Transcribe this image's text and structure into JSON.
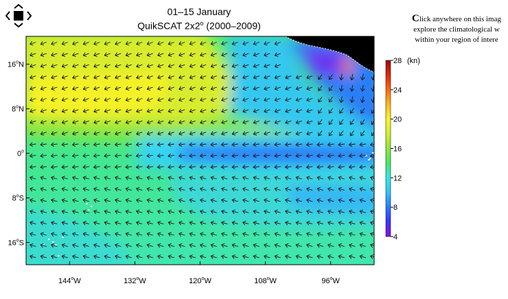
{
  "header": {
    "title": "01–15 January",
    "subtitle_prefix": "QuikSCAT 2x2",
    "subtitle_degree": "o",
    "subtitle_suffix": " (2000–2009)"
  },
  "info": {
    "lead_letter": "C",
    "line1_rest": "lick anywhere on this imag",
    "line2": "explore the climatological w",
    "line3": "within your region of intere"
  },
  "navigation": {
    "icons": [
      "arrow-up-icon",
      "arrow-down-icon",
      "arrow-left-icon",
      "arrow-right-icon",
      "center-square-icon"
    ]
  },
  "colorbar": {
    "unit": "(kn)",
    "ticks": [
      "28",
      "24",
      "20",
      "16",
      "12",
      "8",
      "4"
    ],
    "stops": [
      {
        "value": 4,
        "color": "#8a10e0"
      },
      {
        "value": 6,
        "color": "#3a30ff"
      },
      {
        "value": 8,
        "color": "#2a7af6"
      },
      {
        "value": 10,
        "color": "#34c0ff"
      },
      {
        "value": 12,
        "color": "#30e8e0"
      },
      {
        "value": 14,
        "color": "#46e86a"
      },
      {
        "value": 16,
        "color": "#90e63a"
      },
      {
        "value": 18,
        "color": "#d2ee2a"
      },
      {
        "value": 20,
        "color": "#fff426"
      },
      {
        "value": 22,
        "color": "#ffb81c"
      },
      {
        "value": 24,
        "color": "#ff6a10"
      },
      {
        "value": 26,
        "color": "#e02808"
      },
      {
        "value": 28,
        "color": "#a00808"
      }
    ]
  },
  "map": {
    "lon_range": [
      -152,
      -88
    ],
    "lat_range": [
      -20,
      21
    ],
    "lat_ticks": [
      {
        "value": 16,
        "label": "16",
        "deg": "o",
        "hemi": "N"
      },
      {
        "value": 8,
        "label": "8",
        "deg": "o",
        "hemi": "N"
      },
      {
        "value": 0,
        "label": "0",
        "deg": "o",
        "hemi": ""
      },
      {
        "value": -8,
        "label": "8",
        "deg": "o",
        "hemi": "S"
      },
      {
        "value": -16,
        "label": "16",
        "deg": "o",
        "hemi": "S"
      }
    ],
    "lon_ticks": [
      {
        "value": -144,
        "label": "144",
        "deg": "o",
        "hemi": "W"
      },
      {
        "value": -132,
        "label": "132",
        "deg": "o",
        "hemi": "W"
      },
      {
        "value": -120,
        "label": "120",
        "deg": "o",
        "hemi": "W"
      },
      {
        "value": -108,
        "label": "108",
        "deg": "o",
        "hemi": "W"
      },
      {
        "value": -96,
        "label": "96",
        "deg": "o",
        "hemi": "W"
      }
    ],
    "land_color": "#000000"
  }
}
